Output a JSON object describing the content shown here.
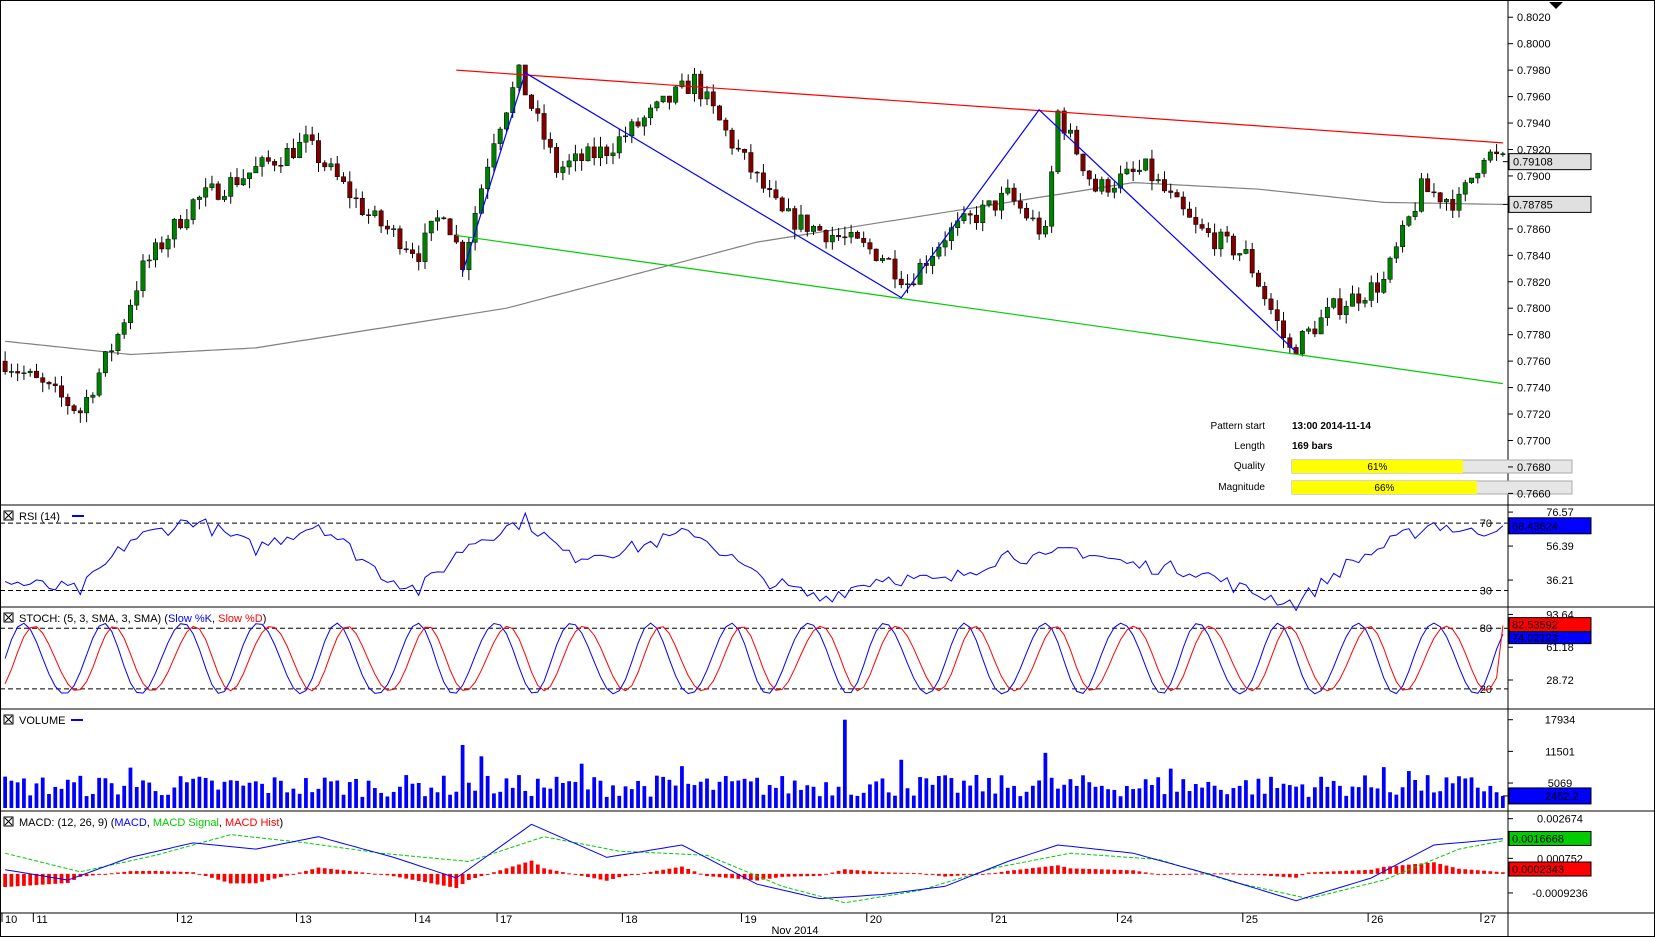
{
  "info_panel": {
    "pattern_start_label": "Pattern start",
    "pattern_start_value": "13:00 2014-11-14",
    "length_label": "Length",
    "length_value": "169 bars",
    "quality_label": "Quality",
    "quality_value": "61%",
    "quality_fraction": 0.61,
    "magnitude_label": "Magnitude",
    "magnitude_value": "66%",
    "magnitude_fraction": 0.66
  },
  "price_pane": {
    "ticks": [
      "0.8020",
      "0.8000",
      "0.7980",
      "0.7960",
      "0.7940",
      "0.7920",
      "0.7900",
      "0.7880",
      "0.7860",
      "0.7840",
      "0.7820",
      "0.7800",
      "0.7780",
      "0.7760",
      "0.7740",
      "0.7720",
      "0.7700",
      "0.7680",
      "0.7660"
    ],
    "current_price": "0.79108",
    "ma_price": "0.78785"
  },
  "rsi_pane": {
    "title": "RSI (14)",
    "ticks": [
      "76.57",
      "56.39",
      "36.21"
    ],
    "levels": [
      "70",
      "30"
    ],
    "current": "68.43624"
  },
  "stoch_pane": {
    "title": "STOCH: (5, 3, SMA, 3, SMA)",
    "k_label": "Slow %K",
    "d_label": "Slow %D",
    "ticks": [
      "93.64",
      "61.18",
      "28.72"
    ],
    "levels": [
      "80",
      "20"
    ],
    "current_d": "82.53592",
    "current_k": "74.02123"
  },
  "volume_pane": {
    "title": "VOLUME",
    "ticks": [
      "17934",
      "11501",
      "5069"
    ],
    "current": "2452.2"
  },
  "macd_pane": {
    "title": "MACD: (12, 26, 9)",
    "macd_label": "MACD",
    "signal_label": "MACD Signal",
    "hist_label": "MACD Hist",
    "ticks": [
      "0.002674",
      "0.000752",
      "-0.0009236"
    ],
    "current_macd": "0.0016668",
    "current_hist": "0.0002343"
  },
  "x_axis": {
    "day_labels": [
      "10",
      "11",
      "12",
      "13",
      "14",
      "17",
      "18",
      "19",
      "20",
      "21",
      "24",
      "25",
      "26",
      "27"
    ],
    "month_label": "Nov 2014"
  },
  "colors": {
    "resistance_line": "#ff0000",
    "support_line": "#00cc00",
    "zigzag": "#0000ff",
    "moving_average": "#808080",
    "candle_up": "#008000",
    "candle_down": "#800000",
    "rsi_line": "#0000ff",
    "stoch_k": "#0000ff",
    "stoch_d": "#ff0000",
    "volume_bar": "#0000ff",
    "macd_line": "#0000ff",
    "macd_signal": "#00cc00",
    "macd_hist": "#ff0000",
    "quality_bar": "#ffff00"
  },
  "chart_data": [
    {
      "type": "candlestick",
      "title": "",
      "ylim": [
        0.7655,
        0.803
      ],
      "bars": 240,
      "price_anchors": [
        {
          "bar": 0,
          "price": 0.776
        },
        {
          "bar": 12,
          "price": 0.7722
        },
        {
          "bar": 18,
          "price": 0.778
        },
        {
          "bar": 22,
          "price": 0.783
        },
        {
          "bar": 30,
          "price": 0.788
        },
        {
          "bar": 38,
          "price": 0.79
        },
        {
          "bar": 48,
          "price": 0.7925
        },
        {
          "bar": 58,
          "price": 0.787
        },
        {
          "bar": 66,
          "price": 0.7842
        },
        {
          "bar": 70,
          "price": 0.7875
        },
        {
          "bar": 73,
          "price": 0.7835
        },
        {
          "bar": 78,
          "price": 0.793
        },
        {
          "bar": 82,
          "price": 0.7976
        },
        {
          "bar": 88,
          "price": 0.7905
        },
        {
          "bar": 96,
          "price": 0.792
        },
        {
          "bar": 104,
          "price": 0.795
        },
        {
          "bar": 110,
          "price": 0.7972
        },
        {
          "bar": 116,
          "price": 0.7925
        },
        {
          "bar": 124,
          "price": 0.787
        },
        {
          "bar": 134,
          "price": 0.7852
        },
        {
          "bar": 140,
          "price": 0.784
        },
        {
          "bar": 144,
          "price": 0.782
        },
        {
          "bar": 150,
          "price": 0.7855
        },
        {
          "bar": 160,
          "price": 0.7885
        },
        {
          "bar": 166,
          "price": 0.7855
        },
        {
          "bar": 168,
          "price": 0.7948
        },
        {
          "bar": 174,
          "price": 0.789
        },
        {
          "bar": 182,
          "price": 0.7905
        },
        {
          "bar": 190,
          "price": 0.786
        },
        {
          "bar": 198,
          "price": 0.784
        },
        {
          "bar": 205,
          "price": 0.7768
        },
        {
          "bar": 212,
          "price": 0.78
        },
        {
          "bar": 220,
          "price": 0.782
        },
        {
          "bar": 226,
          "price": 0.789
        },
        {
          "bar": 232,
          "price": 0.788
        },
        {
          "bar": 236,
          "price": 0.7918
        },
        {
          "bar": 239,
          "price": 0.7911
        }
      ],
      "moving_average": [
        {
          "bar": 0,
          "price": 0.7775
        },
        {
          "bar": 20,
          "price": 0.7765
        },
        {
          "bar": 40,
          "price": 0.777
        },
        {
          "bar": 60,
          "price": 0.7785
        },
        {
          "bar": 80,
          "price": 0.78
        },
        {
          "bar": 100,
          "price": 0.7825
        },
        {
          "bar": 120,
          "price": 0.785
        },
        {
          "bar": 140,
          "price": 0.7865
        },
        {
          "bar": 160,
          "price": 0.788
        },
        {
          "bar": 180,
          "price": 0.7895
        },
        {
          "bar": 200,
          "price": 0.789
        },
        {
          "bar": 220,
          "price": 0.788
        },
        {
          "bar": 239,
          "price": 0.78785
        }
      ],
      "resistance_line": [
        {
          "bar": 72,
          "price": 0.798
        },
        {
          "bar": 239,
          "price": 0.7925
        }
      ],
      "support_line": [
        {
          "bar": 72,
          "price": 0.7855
        },
        {
          "bar": 239,
          "price": 0.7743
        }
      ],
      "zigzag": [
        {
          "bar": 73,
          "price": 0.7827
        },
        {
          "bar": 83,
          "price": 0.7978
        },
        {
          "bar": 143,
          "price": 0.7808
        },
        {
          "bar": 165,
          "price": 0.795
        },
        {
          "bar": 206,
          "price": 0.7767
        }
      ]
    },
    {
      "type": "line",
      "title": "RSI (14)",
      "ylim": [
        22,
        79
      ],
      "series": [
        {
          "name": "RSI (14)",
          "anchors": [
            {
              "bar": 0,
              "v": 35
            },
            {
              "bar": 12,
              "v": 30
            },
            {
              "bar": 20,
              "v": 60
            },
            {
              "bar": 30,
              "v": 72
            },
            {
              "bar": 40,
              "v": 55
            },
            {
              "bar": 50,
              "v": 70
            },
            {
              "bar": 60,
              "v": 40
            },
            {
              "bar": 66,
              "v": 30
            },
            {
              "bar": 74,
              "v": 58
            },
            {
              "bar": 83,
              "v": 72
            },
            {
              "bar": 90,
              "v": 50
            },
            {
              "bar": 100,
              "v": 55
            },
            {
              "bar": 110,
              "v": 65
            },
            {
              "bar": 120,
              "v": 38
            },
            {
              "bar": 130,
              "v": 25
            },
            {
              "bar": 140,
              "v": 38
            },
            {
              "bar": 150,
              "v": 35
            },
            {
              "bar": 160,
              "v": 52
            },
            {
              "bar": 166,
              "v": 48
            },
            {
              "bar": 170,
              "v": 55
            },
            {
              "bar": 180,
              "v": 45
            },
            {
              "bar": 190,
              "v": 42
            },
            {
              "bar": 198,
              "v": 30
            },
            {
              "bar": 206,
              "v": 22
            },
            {
              "bar": 214,
              "v": 45
            },
            {
              "bar": 222,
              "v": 60
            },
            {
              "bar": 228,
              "v": 70
            },
            {
              "bar": 234,
              "v": 64
            },
            {
              "bar": 239,
              "v": 68.43624
            }
          ]
        }
      ]
    },
    {
      "type": "line",
      "title": "STOCH: (5, 3, SMA, 3, SMA)",
      "ylim": [
        3,
        98
      ],
      "series": [
        {
          "name": "Slow %K",
          "period": 12.5,
          "phase": 0.0,
          "center": 50,
          "amp": 35,
          "last": 74.02123
        },
        {
          "name": "Slow %D",
          "period": 12.5,
          "phase": 0.9,
          "center": 50,
          "amp": 32,
          "last": 82.53592
        }
      ]
    },
    {
      "type": "bar",
      "title": "VOLUME",
      "ylim": [
        0,
        19500
      ],
      "typical": 5000,
      "spikes": [
        {
          "bar": 73,
          "v": 12800
        },
        {
          "bar": 76,
          "v": 10500
        },
        {
          "bar": 134,
          "v": 17934
        },
        {
          "bar": 143,
          "v": 9800
        },
        {
          "bar": 166,
          "v": 11200
        },
        {
          "bar": 20,
          "v": 8200
        },
        {
          "bar": 92,
          "v": 9000
        },
        {
          "bar": 108,
          "v": 8500
        },
        {
          "bar": 186,
          "v": 8000
        },
        {
          "bar": 220,
          "v": 8300
        },
        {
          "bar": 224,
          "v": 7500
        }
      ],
      "last": 2452.2
    },
    {
      "type": "line",
      "title": "MACD: (12, 26, 9)",
      "ylim": [
        -0.00175,
        0.0029
      ],
      "series": [
        {
          "name": "MACD",
          "anchors": [
            {
              "bar": 0,
              "v": 0.0002
            },
            {
              "bar": 10,
              "v": -0.0003
            },
            {
              "bar": 20,
              "v": 0.0008
            },
            {
              "bar": 30,
              "v": 0.0015
            },
            {
              "bar": 40,
              "v": 0.0012
            },
            {
              "bar": 50,
              "v": 0.0018
            },
            {
              "bar": 62,
              "v": 0.0008
            },
            {
              "bar": 72,
              "v": -0.0002
            },
            {
              "bar": 84,
              "v": 0.0024
            },
            {
              "bar": 96,
              "v": 0.0008
            },
            {
              "bar": 108,
              "v": 0.0014
            },
            {
              "bar": 120,
              "v": -0.0005
            },
            {
              "bar": 130,
              "v": -0.0012
            },
            {
              "bar": 140,
              "v": -0.001
            },
            {
              "bar": 150,
              "v": -0.0006
            },
            {
              "bar": 160,
              "v": 0.0006
            },
            {
              "bar": 168,
              "v": 0.0014
            },
            {
              "bar": 180,
              "v": 0.001
            },
            {
              "bar": 192,
              "v": 0.0
            },
            {
              "bar": 206,
              "v": -0.0013
            },
            {
              "bar": 218,
              "v": -0.0002
            },
            {
              "bar": 228,
              "v": 0.0014
            },
            {
              "bar": 239,
              "v": 0.0017
            }
          ]
        },
        {
          "name": "MACD Signal",
          "anchors": [
            {
              "bar": 0,
              "v": 0.001
            },
            {
              "bar": 12,
              "v": 0.0001
            },
            {
              "bar": 24,
              "v": 0.0009
            },
            {
              "bar": 36,
              "v": 0.0019
            },
            {
              "bar": 48,
              "v": 0.0015
            },
            {
              "bar": 60,
              "v": 0.001
            },
            {
              "bar": 74,
              "v": 0.0006
            },
            {
              "bar": 86,
              "v": 0.0018
            },
            {
              "bar": 98,
              "v": 0.0011
            },
            {
              "bar": 112,
              "v": 0.0009
            },
            {
              "bar": 124,
              "v": -0.0006
            },
            {
              "bar": 134,
              "v": -0.0014
            },
            {
              "bar": 146,
              "v": -0.0008
            },
            {
              "bar": 158,
              "v": 0.0003
            },
            {
              "bar": 170,
              "v": 0.001
            },
            {
              "bar": 184,
              "v": 0.0007
            },
            {
              "bar": 196,
              "v": -0.0004
            },
            {
              "bar": 208,
              "v": -0.0012
            },
            {
              "bar": 220,
              "v": -0.0003
            },
            {
              "bar": 232,
              "v": 0.0012
            },
            {
              "bar": 239,
              "v": 0.0016
            }
          ]
        },
        {
          "name": "MACD Hist",
          "kind": "histogram"
        }
      ]
    }
  ]
}
